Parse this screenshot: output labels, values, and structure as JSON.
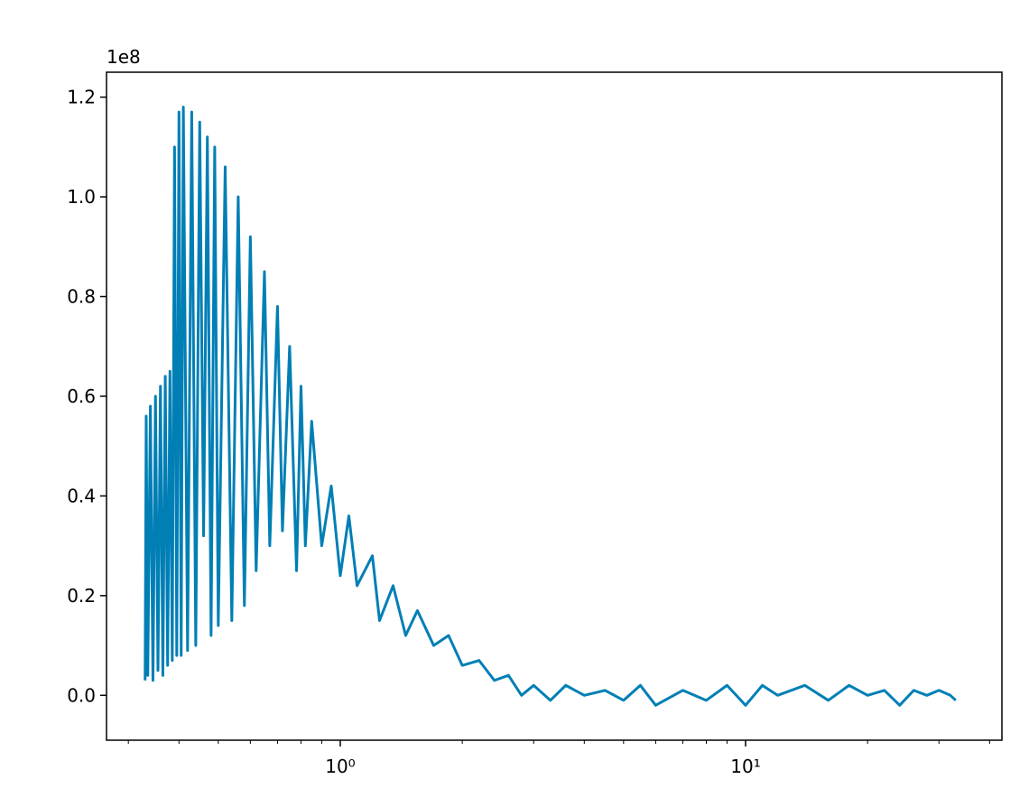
{
  "chart_data": {
    "type": "line",
    "y_offset_label": "1e8",
    "xscale": "log",
    "xlim": [
      0.265,
      42.9
    ],
    "xticks": [
      {
        "value": 1,
        "label": "10⁰"
      },
      {
        "value": 10,
        "label": "10¹"
      }
    ],
    "xminor_ticks": [
      0.3,
      0.4,
      0.5,
      0.6,
      0.7,
      0.8,
      0.9,
      2,
      3,
      4,
      5,
      6,
      7,
      8,
      9,
      20,
      30,
      40
    ],
    "ylim": [
      -0.09,
      1.25
    ],
    "yticks": [
      {
        "value": 0,
        "label": "0.0"
      },
      0.2,
      0.4,
      0.6,
      0.8,
      {
        "value": 1,
        "label": "1.0"
      },
      1.2
    ],
    "grid": false,
    "series": [
      {
        "color": "#007fb5",
        "x": [
          0.33,
          0.332,
          0.335,
          0.34,
          0.345,
          0.35,
          0.355,
          0.36,
          0.365,
          0.37,
          0.375,
          0.38,
          0.385,
          0.39,
          0.395,
          0.4,
          0.405,
          0.41,
          0.42,
          0.43,
          0.44,
          0.45,
          0.46,
          0.47,
          0.48,
          0.49,
          0.5,
          0.52,
          0.54,
          0.56,
          0.58,
          0.6,
          0.62,
          0.65,
          0.67,
          0.7,
          0.72,
          0.75,
          0.78,
          0.8,
          0.82,
          0.85,
          0.9,
          0.95,
          1.0,
          1.05,
          1.1,
          1.2,
          1.25,
          1.35,
          1.45,
          1.55,
          1.7,
          1.85,
          2.0,
          2.2,
          2.4,
          2.6,
          2.8,
          3.0,
          3.3,
          3.6,
          4.0,
          4.5,
          5.0,
          5.5,
          6.0,
          7,
          8,
          9,
          10,
          11,
          12,
          14,
          16,
          18,
          20,
          22,
          24,
          26,
          28,
          30,
          32,
          33
        ],
        "values": [
          0.03,
          0.56,
          0.04,
          0.58,
          0.03,
          0.6,
          0.05,
          0.62,
          0.04,
          0.64,
          0.06,
          0.65,
          0.07,
          1.1,
          0.08,
          1.17,
          0.08,
          1.18,
          0.09,
          1.17,
          0.1,
          1.15,
          0.32,
          1.12,
          0.12,
          1.1,
          0.14,
          1.06,
          0.15,
          1.0,
          0.18,
          0.92,
          0.25,
          0.85,
          0.3,
          0.78,
          0.33,
          0.7,
          0.25,
          0.62,
          0.3,
          0.55,
          0.3,
          0.42,
          0.24,
          0.36,
          0.22,
          0.28,
          0.15,
          0.22,
          0.12,
          0.17,
          0.1,
          0.12,
          0.06,
          0.07,
          0.03,
          0.04,
          0.0,
          0.02,
          -0.01,
          0.02,
          0.0,
          0.01,
          -0.01,
          0.02,
          -0.02,
          0.01,
          -0.01,
          0.02,
          -0.02,
          0.02,
          0.0,
          0.02,
          -0.01,
          0.02,
          0.0,
          0.01,
          -0.02,
          0.01,
          0.0,
          0.01,
          0.0,
          -0.01
        ]
      }
    ]
  }
}
